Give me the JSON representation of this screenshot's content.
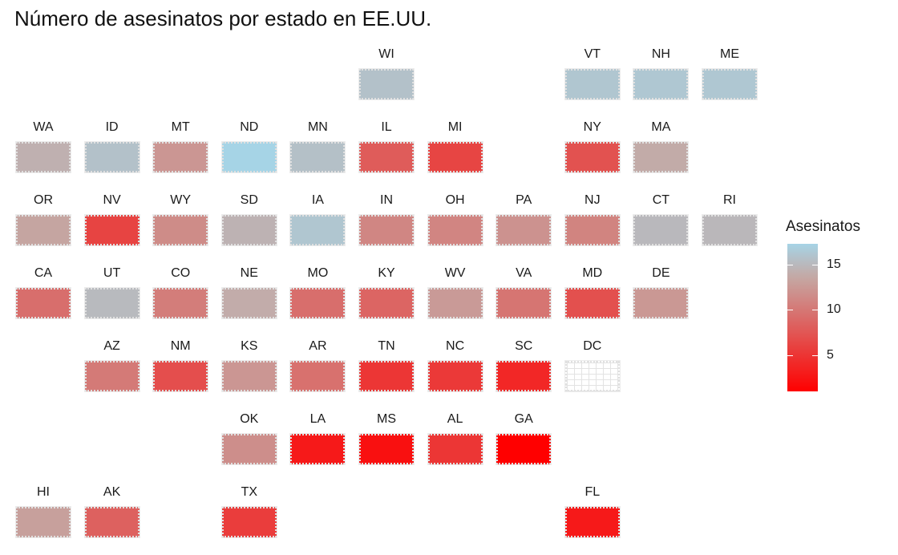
{
  "title": "Número de asesinatos por estado en EE.UU.",
  "chart_data": {
    "type": "heatmap",
    "title": "Número de asesinatos por estado en EE.UU.",
    "legend": {
      "title": "Asesinatos",
      "placement": "right",
      "range": [
        1,
        17.3
      ],
      "ticks": [
        5,
        10,
        15
      ],
      "tick_labels": [
        "5",
        "10",
        "15"
      ],
      "low_color": "#a6d4e6",
      "mid_color": "#c4a9a5",
      "high_color": "#ff0000"
    },
    "tiles": [
      {
        "state": "WI",
        "row": 0,
        "col": 5,
        "murders": 2.6
      },
      {
        "state": "VT",
        "row": 0,
        "col": 8,
        "murders": 2.2
      },
      {
        "state": "NH",
        "row": 0,
        "col": 9,
        "murders": 2.1
      },
      {
        "state": "ME",
        "row": 0,
        "col": 10,
        "murders": 2.1
      },
      {
        "state": "WA",
        "row": 1,
        "col": 0,
        "murders": 4.0
      },
      {
        "state": "ID",
        "row": 1,
        "col": 1,
        "murders": 2.6
      },
      {
        "state": "MT",
        "row": 1,
        "col": 2,
        "murders": 6.0
      },
      {
        "state": "ND",
        "row": 1,
        "col": 3,
        "murders": 0.8
      },
      {
        "state": "MN",
        "row": 1,
        "col": 4,
        "murders": 2.7
      },
      {
        "state": "IL",
        "row": 1,
        "col": 5,
        "murders": 10.4
      },
      {
        "state": "MI",
        "row": 1,
        "col": 6,
        "murders": 12.1
      },
      {
        "state": "NY",
        "row": 1,
        "col": 8,
        "murders": 11.1
      },
      {
        "state": "MA",
        "row": 1,
        "col": 9,
        "murders": 4.4
      },
      {
        "state": "OR",
        "row": 2,
        "col": 0,
        "murders": 4.9
      },
      {
        "state": "NV",
        "row": 2,
        "col": 1,
        "murders": 12.2
      },
      {
        "state": "WY",
        "row": 2,
        "col": 2,
        "murders": 6.8
      },
      {
        "state": "SD",
        "row": 2,
        "col": 3,
        "murders": 3.8
      },
      {
        "state": "IA",
        "row": 2,
        "col": 4,
        "murders": 2.2
      },
      {
        "state": "IN",
        "row": 2,
        "col": 5,
        "murders": 7.2
      },
      {
        "state": "OH",
        "row": 2,
        "col": 6,
        "murders": 7.3
      },
      {
        "state": "PA",
        "row": 2,
        "col": 7,
        "murders": 6.3
      },
      {
        "state": "NJ",
        "row": 2,
        "col": 8,
        "murders": 7.4
      },
      {
        "state": "CT",
        "row": 2,
        "col": 9,
        "murders": 3.3
      },
      {
        "state": "RI",
        "row": 2,
        "col": 10,
        "murders": 3.4
      },
      {
        "state": "CA",
        "row": 3,
        "col": 0,
        "murders": 9.0
      },
      {
        "state": "UT",
        "row": 3,
        "col": 1,
        "murders": 3.2
      },
      {
        "state": "CO",
        "row": 3,
        "col": 2,
        "murders": 7.9
      },
      {
        "state": "NE",
        "row": 3,
        "col": 3,
        "murders": 4.3
      },
      {
        "state": "MO",
        "row": 3,
        "col": 4,
        "murders": 9.0
      },
      {
        "state": "KY",
        "row": 3,
        "col": 5,
        "murders": 9.7
      },
      {
        "state": "WV",
        "row": 3,
        "col": 6,
        "murders": 5.7
      },
      {
        "state": "VA",
        "row": 3,
        "col": 7,
        "murders": 8.5
      },
      {
        "state": "MD",
        "row": 3,
        "col": 8,
        "murders": 11.3
      },
      {
        "state": "DE",
        "row": 3,
        "col": 9,
        "murders": 5.9
      },
      {
        "state": "AZ",
        "row": 4,
        "col": 1,
        "murders": 8.1
      },
      {
        "state": "NM",
        "row": 4,
        "col": 2,
        "murders": 11.4
      },
      {
        "state": "KS",
        "row": 4,
        "col": 3,
        "murders": 6.0
      },
      {
        "state": "AR",
        "row": 4,
        "col": 4,
        "murders": 8.8
      },
      {
        "state": "TN",
        "row": 4,
        "col": 5,
        "murders": 13.2
      },
      {
        "state": "NC",
        "row": 4,
        "col": 6,
        "murders": 13.0
      },
      {
        "state": "SC",
        "row": 4,
        "col": 7,
        "murders": 14.4
      },
      {
        "state": "DC",
        "row": 4,
        "col": 8,
        "murders": null
      },
      {
        "state": "OK",
        "row": 5,
        "col": 3,
        "murders": 6.6
      },
      {
        "state": "LA",
        "row": 5,
        "col": 4,
        "murders": 15.4
      },
      {
        "state": "MS",
        "row": 5,
        "col": 5,
        "murders": 16.1
      },
      {
        "state": "AL",
        "row": 5,
        "col": 6,
        "murders": 13.2
      },
      {
        "state": "GA",
        "row": 5,
        "col": 7,
        "murders": 17.4
      },
      {
        "state": "HI",
        "row": 6,
        "col": 0,
        "murders": 5.3
      },
      {
        "state": "AK",
        "row": 6,
        "col": 1,
        "murders": 10.0
      },
      {
        "state": "TX",
        "row": 6,
        "col": 3,
        "murders": 12.7
      },
      {
        "state": "FL",
        "row": 6,
        "col": 8,
        "murders": 15.4
      }
    ]
  }
}
